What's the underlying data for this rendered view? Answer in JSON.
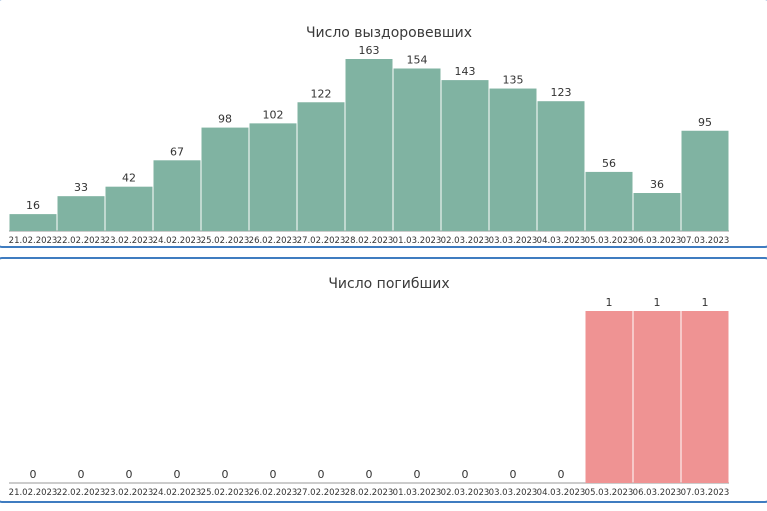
{
  "chart_data": [
    {
      "type": "bar",
      "title": "Число выздоровевших",
      "xlabel": "",
      "ylabel": "",
      "color": "#80b3a2",
      "categories": [
        "21.02.2023",
        "22.02.2023",
        "23.02.2023",
        "24.02.2023",
        "25.02.2023",
        "26.02.2023",
        "27.02.2023",
        "28.02.2023",
        "01.03.2023",
        "02.03.2023",
        "03.03.2023",
        "04.03.2023",
        "05.03.2023",
        "06.03.2023",
        "07.03.2023"
      ],
      "values": [
        16,
        33,
        42,
        67,
        98,
        102,
        122,
        163,
        154,
        143,
        135,
        123,
        56,
        36,
        95
      ],
      "ylim": [
        0,
        163
      ],
      "grid": false,
      "legend": "none"
    },
    {
      "type": "bar",
      "title": "Число погибших",
      "xlabel": "",
      "ylabel": "",
      "color": "#ef9393",
      "categories": [
        "21.02.2023",
        "22.02.2023",
        "23.02.2023",
        "24.02.2023",
        "25.02.2023",
        "26.02.2023",
        "27.02.2023",
        "28.02.2023",
        "01.03.2023",
        "02.03.2023",
        "03.03.2023",
        "04.03.2023",
        "05.03.2023",
        "06.03.2023",
        "07.03.2023"
      ],
      "values": [
        0,
        0,
        0,
        0,
        0,
        0,
        0,
        0,
        0,
        0,
        0,
        0,
        1,
        1,
        1
      ],
      "ylim": [
        0,
        1
      ],
      "grid": false,
      "legend": "none"
    }
  ]
}
